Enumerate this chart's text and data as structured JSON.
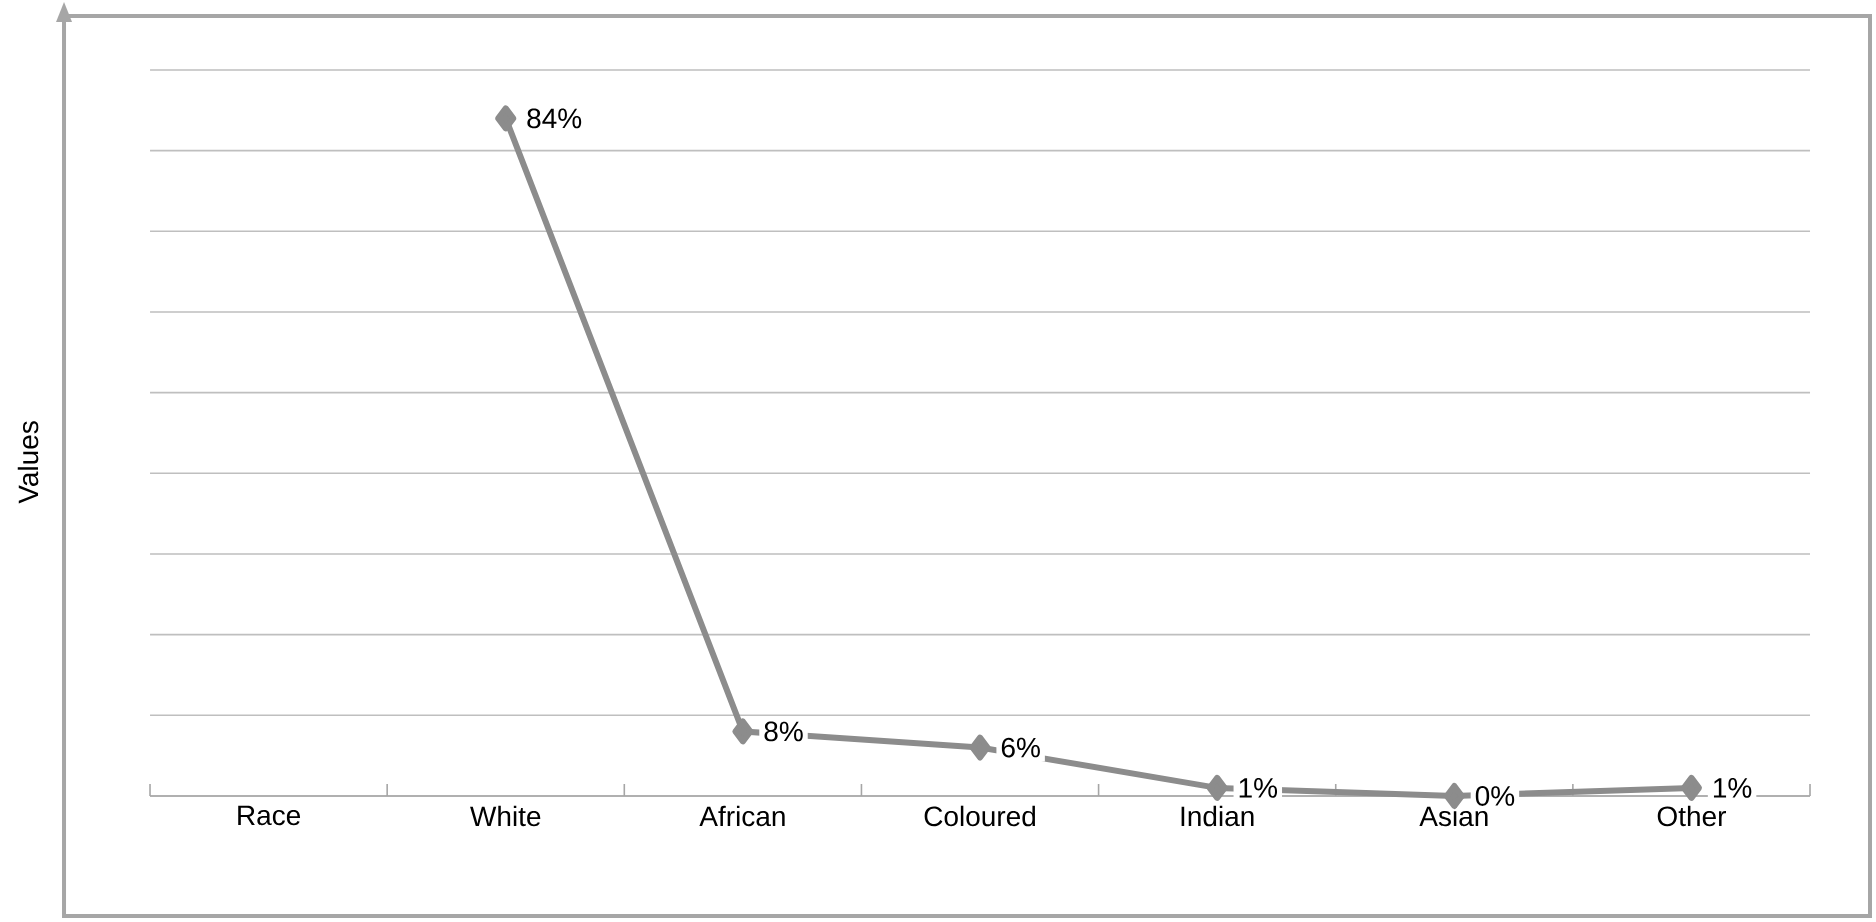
{
  "chart_data": {
    "type": "line",
    "ylabel": "Values",
    "categories": [
      "Race",
      "White",
      "African",
      "Coloured",
      "Indian",
      "Asian",
      "Other"
    ],
    "values": [
      null,
      84,
      8,
      6,
      1,
      0,
      1
    ],
    "value_labels": [
      null,
      "84%",
      "8%",
      "6%",
      "1%",
      "0%",
      "1%"
    ],
    "color": "#8c8c8c",
    "marker": "diamond",
    "grid": "y",
    "ylim": [
      0,
      90
    ],
    "yticks": [
      {
        "value": 0,
        "label": null
      },
      {
        "value": 10,
        "label": null
      },
      {
        "value": 20,
        "label": null
      },
      {
        "value": 30,
        "label": null
      },
      {
        "value": 40,
        "label": null
      },
      {
        "value": 50,
        "label": null
      },
      {
        "value": 60,
        "label": null
      },
      {
        "value": 70,
        "label": null
      },
      {
        "value": 80,
        "label": null
      },
      {
        "value": 90,
        "label": null
      }
    ],
    "tick_labels": "x"
  }
}
